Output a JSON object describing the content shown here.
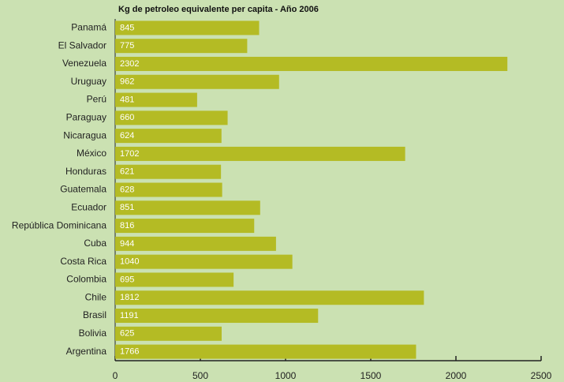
{
  "chart_data": {
    "type": "bar",
    "orientation": "horizontal",
    "title": "Kg de petroleo equivalente per capita - Año 2006",
    "categories": [
      "Panamá",
      "El Salvador",
      "Venezuela",
      "Uruguay",
      "Perú",
      "Paraguay",
      "Nicaragua",
      "México",
      "Honduras",
      "Guatemala",
      "Ecuador",
      "República Dominicana",
      "Cuba",
      "Costa Rica",
      "Colombia",
      "Chile",
      "Brasil",
      "Bolivia",
      "Argentina"
    ],
    "values": [
      845,
      775,
      2302,
      962,
      481,
      660,
      624,
      1702,
      621,
      628,
      851,
      816,
      944,
      1040,
      695,
      1812,
      1191,
      625,
      1766
    ],
    "color": "#b4bb24",
    "xlim": [
      0,
      2500
    ],
    "xticks": [
      0,
      500,
      1000,
      1500,
      2000,
      2500
    ],
    "grid": false
  }
}
